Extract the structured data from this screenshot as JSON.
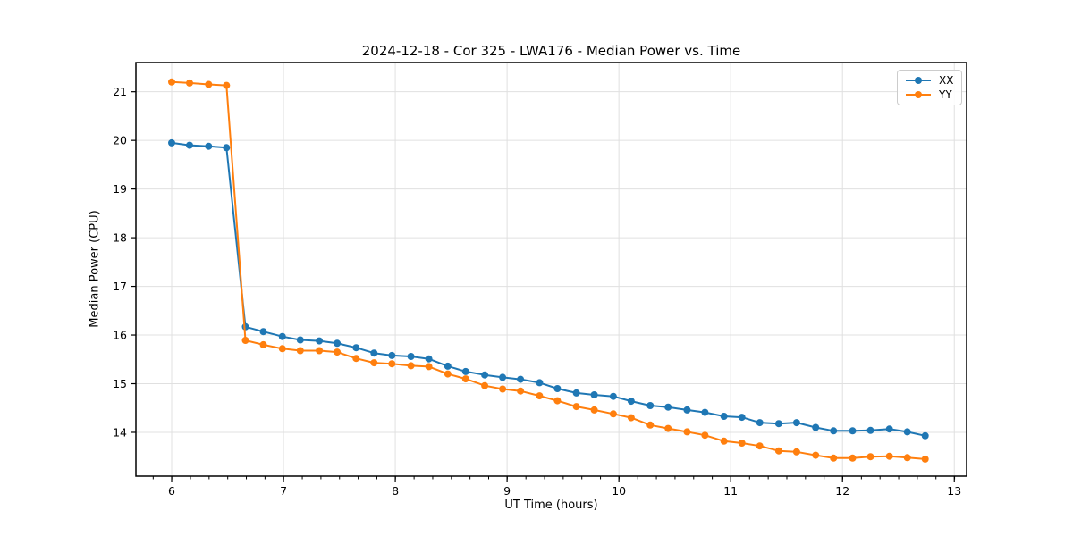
{
  "chart_data": {
    "type": "line",
    "title": "2024-12-18 - Cor 325 - LWA176 - Median Power vs. Time",
    "xlabel": "UT Time (hours)",
    "ylabel": "Median Power (CPU)",
    "xlim": [
      5.68,
      13.11
    ],
    "ylim": [
      13.1,
      21.6
    ],
    "x_ticks": [
      6,
      7,
      8,
      9,
      10,
      11,
      12,
      13
    ],
    "y_ticks": [
      14,
      15,
      16,
      17,
      18,
      19,
      20,
      21
    ],
    "x_minor_tick_step": 0.1667,
    "grid": true,
    "legend_position": "upper right",
    "x": [
      6.0,
      6.16,
      6.33,
      6.49,
      6.66,
      6.82,
      6.99,
      7.15,
      7.32,
      7.48,
      7.65,
      7.81,
      7.97,
      8.14,
      8.3,
      8.47,
      8.63,
      8.8,
      8.96,
      9.12,
      9.29,
      9.45,
      9.62,
      9.78,
      9.95,
      10.11,
      10.28,
      10.44,
      10.61,
      10.77,
      10.94,
      11.1,
      11.26,
      11.43,
      11.59,
      11.76,
      11.92,
      12.09,
      12.25,
      12.42,
      12.58,
      12.74
    ],
    "series": [
      {
        "name": "XX",
        "color": "#1f77b4",
        "values": [
          19.95,
          19.9,
          19.88,
          19.85,
          16.17,
          16.07,
          15.97,
          15.9,
          15.88,
          15.83,
          15.74,
          15.63,
          15.58,
          15.56,
          15.51,
          15.36,
          15.25,
          15.18,
          15.13,
          15.09,
          15.02,
          14.9,
          14.81,
          14.77,
          14.74,
          14.64,
          14.55,
          14.52,
          14.46,
          14.41,
          14.33,
          14.31,
          14.2,
          14.18,
          14.2,
          14.1,
          14.03,
          14.03,
          14.04,
          14.07,
          14.01,
          13.93
        ]
      },
      {
        "name": "YY",
        "color": "#ff7f0e",
        "values": [
          21.2,
          21.18,
          21.15,
          21.13,
          15.89,
          15.8,
          15.72,
          15.68,
          15.68,
          15.65,
          15.52,
          15.43,
          15.41,
          15.37,
          15.35,
          15.2,
          15.1,
          14.96,
          14.89,
          14.85,
          14.75,
          14.65,
          14.53,
          14.46,
          14.38,
          14.3,
          14.15,
          14.08,
          14.01,
          13.94,
          13.82,
          13.78,
          13.72,
          13.62,
          13.6,
          13.53,
          13.47,
          13.47,
          13.5,
          13.51,
          13.48,
          13.45
        ]
      }
    ]
  },
  "style": {
    "grid_color": "#e0e0e0",
    "spine_color": "#000000",
    "background": "#ffffff",
    "marker_radius": 4,
    "line_width": 2
  }
}
